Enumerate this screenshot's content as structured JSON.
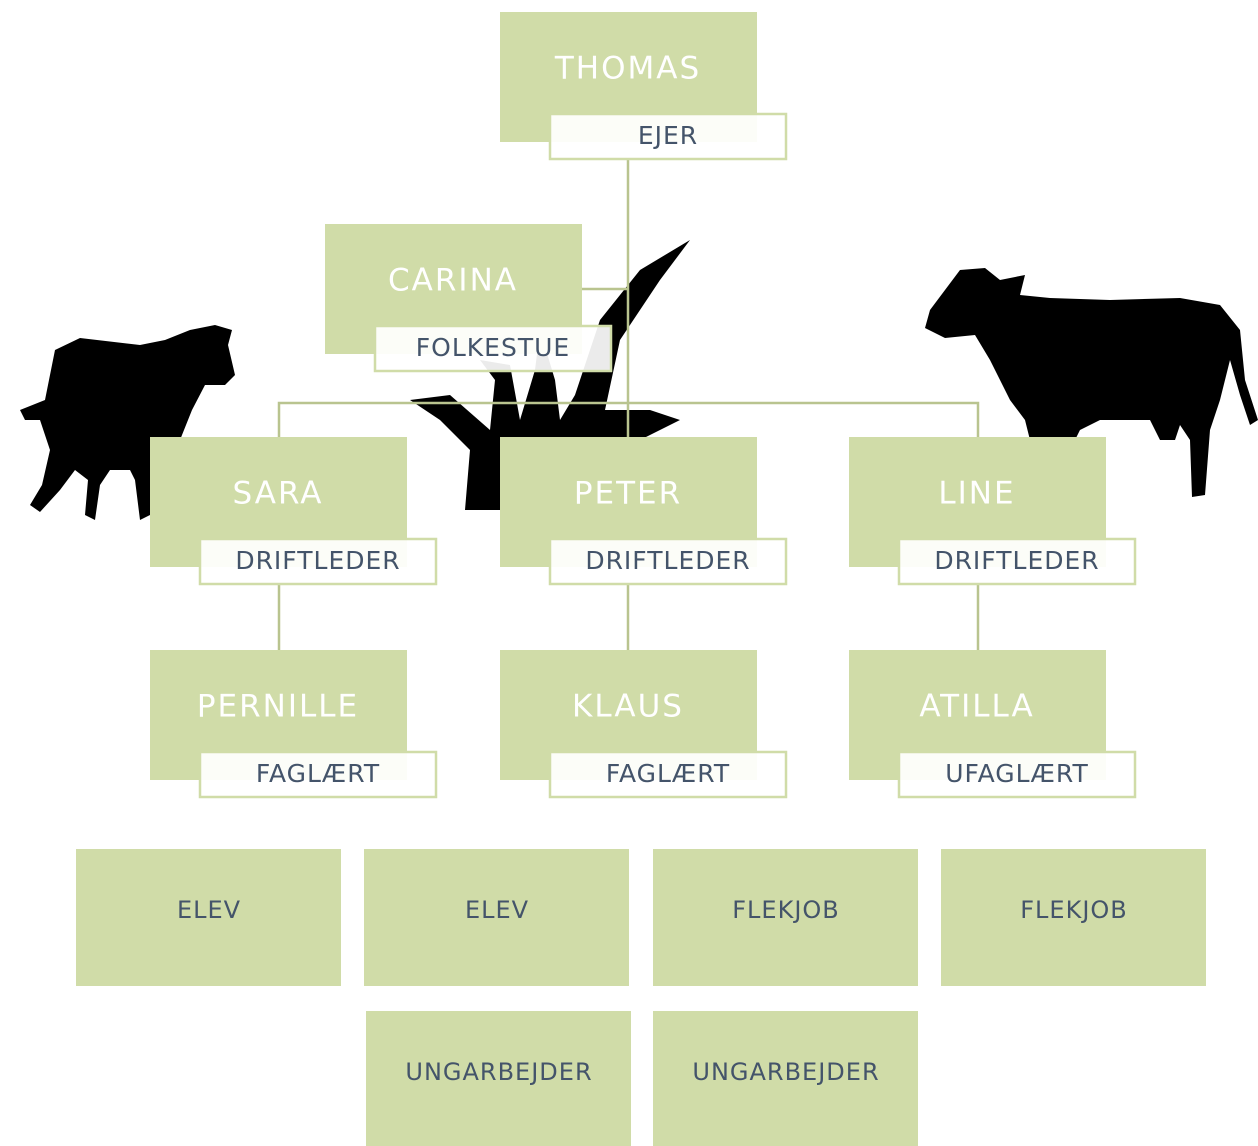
{
  "nodes": [
    {
      "name": "THOMAS",
      "role": "EJER"
    },
    {
      "name": "CARINA",
      "role": "FOLKESTUE"
    },
    {
      "name": "SARA",
      "role": "DRIFTLEDER"
    },
    {
      "name": "PETER",
      "role": "DRIFTLEDER"
    },
    {
      "name": "LINE",
      "role": "DRIFTLEDER"
    },
    {
      "name": "PERNILLE",
      "role": "FAGLÆRT"
    },
    {
      "name": "KLAUS",
      "role": "FAGLÆRT"
    },
    {
      "name": "ATILLA",
      "role": "UFAGLÆRT"
    }
  ],
  "staff": [
    "ELEV",
    "ELEV",
    "FLEKJOB",
    "FLEKJOB",
    "UNGARBEJDER",
    "UNGARBEJDER"
  ]
}
